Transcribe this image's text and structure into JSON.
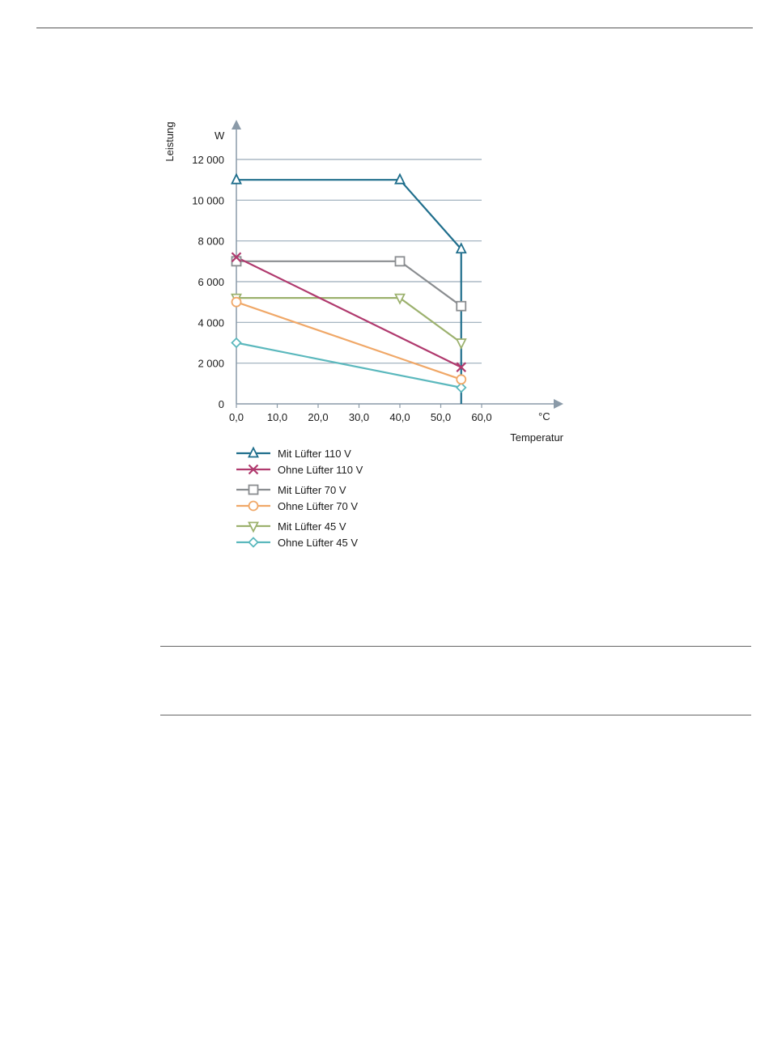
{
  "chart_data": {
    "type": "line",
    "ylabel": "Leistung",
    "yunit": "W",
    "xlabel": "Temperatur",
    "xunit": "°C",
    "ylim": [
      0,
      12000
    ],
    "xlim": [
      0,
      60
    ],
    "yticks": [
      0,
      2000,
      4000,
      6000,
      8000,
      10000,
      12000
    ],
    "ytick_labels": [
      "0",
      "2 000",
      "4 000",
      "6 000",
      "8 000",
      "10 000",
      "12 000"
    ],
    "xticks": [
      0,
      10,
      20,
      30,
      40,
      50,
      60
    ],
    "xtick_labels": [
      "0,0",
      "10,0",
      "20,0",
      "30,0",
      "40,0",
      "50,0",
      "60,0"
    ],
    "grid": "horizontal",
    "legend_position": "bottom",
    "limit_line_x": 55,
    "series": [
      {
        "name": "Mit Lüfter 110 V",
        "color": "#1f6e8c",
        "marker": "triangle-up",
        "points": [
          [
            0,
            11000
          ],
          [
            40,
            11000
          ],
          [
            55,
            7600
          ]
        ]
      },
      {
        "name": "Ohne Lüfter 110 V",
        "color": "#b03a6e",
        "marker": "x",
        "points": [
          [
            0,
            7200
          ],
          [
            55,
            1800
          ]
        ]
      },
      {
        "name": "Mit Lüfter 70 V",
        "color": "#8a8d90",
        "marker": "square",
        "points": [
          [
            0,
            7000
          ],
          [
            40,
            7000
          ],
          [
            55,
            4800
          ]
        ]
      },
      {
        "name": "Ohne Lüfter 70 V",
        "color": "#f0a868",
        "marker": "circle",
        "points": [
          [
            0,
            5000
          ],
          [
            55,
            1200
          ]
        ]
      },
      {
        "name": "Mit Lüfter 45 V",
        "color": "#9cb16e",
        "marker": "triangle-down",
        "points": [
          [
            0,
            5200
          ],
          [
            40,
            5200
          ],
          [
            55,
            3000
          ]
        ]
      },
      {
        "name": "Ohne Lüfter 45 V",
        "color": "#5bb8bd",
        "marker": "diamond",
        "points": [
          [
            0,
            3000
          ],
          [
            55,
            800
          ]
        ]
      }
    ]
  }
}
